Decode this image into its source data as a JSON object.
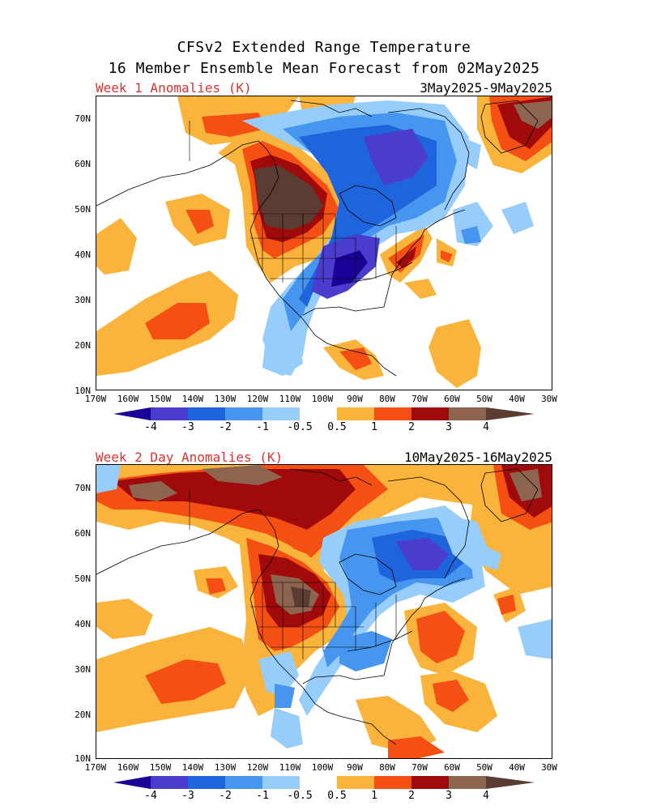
{
  "title": {
    "line1": "CFSv2 Extended Range Temperature",
    "line2": "16 Member Ensemble Mean Forecast from 02May2025"
  },
  "panels": [
    {
      "label": "Week 1 Anomalies (K)",
      "dates": "3May2025-9May2025"
    },
    {
      "label": "Week 2 Day Anomalies (K)",
      "dates": "10May2025-16May2025"
    }
  ],
  "axes": {
    "lat_labels": [
      "70N",
      "60N",
      "50N",
      "40N",
      "30N",
      "20N",
      "10N"
    ],
    "lon_labels": [
      "170W",
      "160W",
      "150W",
      "140W",
      "130W",
      "120W",
      "110W",
      "100W",
      "90W",
      "80W",
      "70W",
      "60W",
      "50W",
      "40W",
      "30W"
    ]
  },
  "colorbar": {
    "labels": [
      "-4",
      "-3",
      "-2",
      "-1",
      "-0.5",
      "0.5",
      "1",
      "2",
      "3",
      "4"
    ],
    "colors": [
      "#1a0096",
      "#4a3ccc",
      "#1e64dc",
      "#4696f0",
      "#96cdfa",
      "#ffffff",
      "#fab43c",
      "#f55014",
      "#a00a0a",
      "#8c6450",
      "#5a3c32"
    ]
  }
}
